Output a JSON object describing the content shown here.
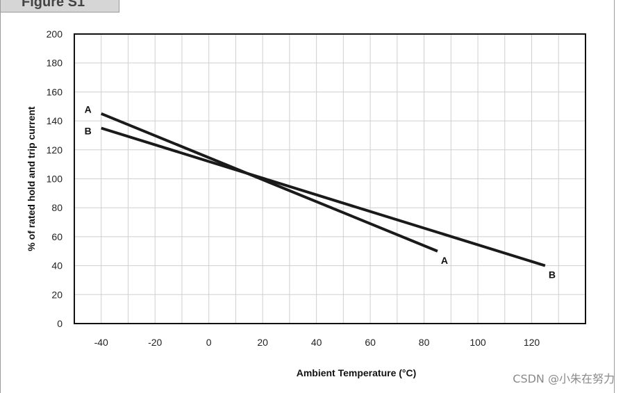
{
  "figure_tab": "Figure S1",
  "watermark": "CSDN @小朱在努力",
  "chart_data": {
    "type": "line",
    "title": "",
    "xlabel": "Ambient Temperature (°C)",
    "ylabel": "% of rated hold and trip current",
    "xlim": [
      -50,
      140
    ],
    "ylim": [
      0,
      200
    ],
    "xticks": [
      -40,
      -20,
      0,
      20,
      40,
      60,
      80,
      100,
      120
    ],
    "yticks": [
      0,
      20,
      40,
      60,
      80,
      100,
      120,
      140,
      160,
      180,
      200
    ],
    "grid": true,
    "series": [
      {
        "name": "A",
        "x": [
          -40,
          85
        ],
        "y": [
          145,
          50
        ]
      },
      {
        "name": "B",
        "x": [
          -40,
          125
        ],
        "y": [
          135,
          40
        ]
      }
    ],
    "colors": {
      "line": "#1a1a1a",
      "grid": "#cfcfcf",
      "axis": "#111111"
    }
  }
}
